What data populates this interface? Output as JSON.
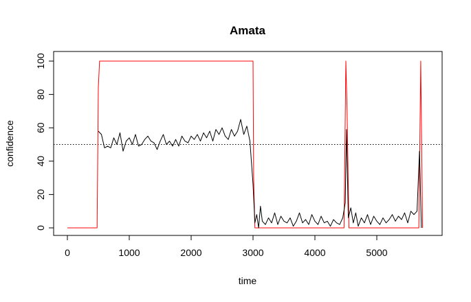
{
  "chart_data": {
    "type": "line",
    "title": "Amata",
    "xlabel": "time",
    "ylabel": "confidence",
    "xlim": [
      0,
      5800
    ],
    "ylim": [
      0,
      100
    ],
    "x_ticks": [
      0,
      1000,
      2000,
      3000,
      4000,
      5000
    ],
    "y_ticks": [
      0,
      20,
      40,
      60,
      80,
      100
    ],
    "grid": false,
    "reference_line": {
      "y": 50,
      "style": "dotted",
      "color": "#000000"
    },
    "series": [
      {
        "color": "#ff0000",
        "x": [
          0,
          480,
          500,
          520,
          3000,
          3010,
          3030,
          4470,
          4500,
          4520,
          4550,
          5680,
          5710,
          5740
        ],
        "y": [
          0,
          0,
          84,
          100,
          100,
          30,
          0,
          0,
          100,
          70,
          0,
          0,
          100,
          0
        ]
      },
      {
        "color": "#000000",
        "x": [
          500,
          550,
          600,
          650,
          700,
          750,
          800,
          850,
          900,
          950,
          1000,
          1050,
          1100,
          1150,
          1200,
          1250,
          1300,
          1350,
          1400,
          1450,
          1500,
          1550,
          1600,
          1650,
          1700,
          1750,
          1800,
          1850,
          1900,
          1950,
          2000,
          2050,
          2100,
          2150,
          2200,
          2250,
          2300,
          2350,
          2400,
          2450,
          2500,
          2550,
          2600,
          2650,
          2700,
          2750,
          2800,
          2850,
          2900,
          2950,
          3000,
          3030,
          3060,
          3090,
          3120,
          3150,
          3200,
          3250,
          3300,
          3350,
          3400,
          3450,
          3500,
          3550,
          3600,
          3650,
          3700,
          3750,
          3800,
          3850,
          3900,
          3950,
          4000,
          4050,
          4100,
          4150,
          4200,
          4250,
          4300,
          4350,
          4400,
          4450,
          4490,
          4510,
          4540,
          4580,
          4620,
          4660,
          4700,
          4750,
          4800,
          4850,
          4900,
          4950,
          5000,
          5050,
          5100,
          5150,
          5200,
          5250,
          5300,
          5350,
          5400,
          5450,
          5500,
          5550,
          5600,
          5650,
          5690,
          5720
        ],
        "y": [
          58,
          56,
          48,
          49,
          48,
          54,
          50,
          57,
          46,
          52,
          54,
          50,
          56,
          49,
          50,
          53,
          55,
          52,
          51,
          47,
          52,
          56,
          50,
          52,
          49,
          53,
          49,
          55,
          52,
          51,
          55,
          53,
          56,
          52,
          57,
          54,
          58,
          52,
          59,
          56,
          60,
          55,
          53,
          59,
          55,
          58,
          65,
          56,
          61,
          52,
          26,
          3,
          8,
          0,
          13,
          4,
          2,
          6,
          3,
          9,
          2,
          7,
          4,
          3,
          6,
          1,
          4,
          9,
          3,
          5,
          2,
          8,
          4,
          2,
          7,
          3,
          4,
          1,
          5,
          3,
          2,
          6,
          15,
          59,
          6,
          12,
          3,
          9,
          1,
          6,
          3,
          8,
          2,
          7,
          4,
          2,
          6,
          3,
          5,
          8,
          4,
          7,
          5,
          9,
          3,
          10,
          8,
          10,
          46,
          0
        ]
      }
    ]
  }
}
